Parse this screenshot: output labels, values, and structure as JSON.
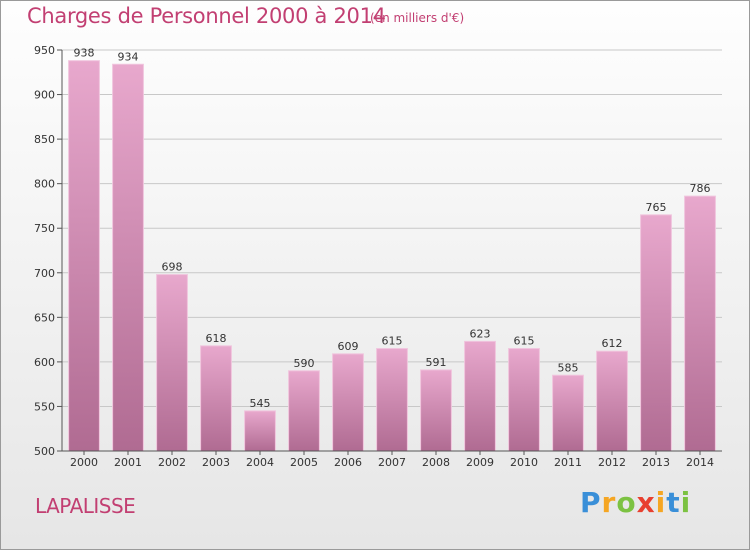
{
  "header": {
    "title": "Charges de Personnel 2000 à 2014",
    "subtitle": "(en milliers d'€)"
  },
  "footer": {
    "commune": "LAPALISSE",
    "logo_text": "Proxiti",
    "logo_letters": [
      {
        "ch": "P",
        "color": "#3a8fd8"
      },
      {
        "ch": "r",
        "color": "#f5a623"
      },
      {
        "ch": "o",
        "color": "#7cc242"
      },
      {
        "ch": "x",
        "color": "#e8402f"
      },
      {
        "ch": "i",
        "color": "#f5a623"
      },
      {
        "ch": "t",
        "color": "#3a8fd8"
      },
      {
        "ch": "i",
        "color": "#7cc242"
      }
    ]
  },
  "chart_data": {
    "type": "bar",
    "title": "Charges de Personnel 2000 à 2014",
    "subtitle": "(en milliers d'€)",
    "categories": [
      "2000",
      "2001",
      "2002",
      "2003",
      "2004",
      "2005",
      "2006",
      "2007",
      "2008",
      "2009",
      "2010",
      "2011",
      "2012",
      "2013",
      "2014"
    ],
    "values": [
      938,
      934,
      698,
      618,
      545,
      590,
      609,
      615,
      591,
      623,
      615,
      585,
      612,
      765,
      786
    ],
    "xlabel": "",
    "ylabel": "",
    "ylim": [
      500,
      950
    ],
    "yticks": [
      500,
      550,
      600,
      650,
      700,
      750,
      800,
      850,
      900,
      950
    ],
    "grid": true,
    "colors": {
      "bar_top": "#e8a8cd",
      "bar_bottom": "#b06b92",
      "bar_edge": "#f0c4dd",
      "grid": "#c8c8c8",
      "axis": "#555555"
    }
  }
}
